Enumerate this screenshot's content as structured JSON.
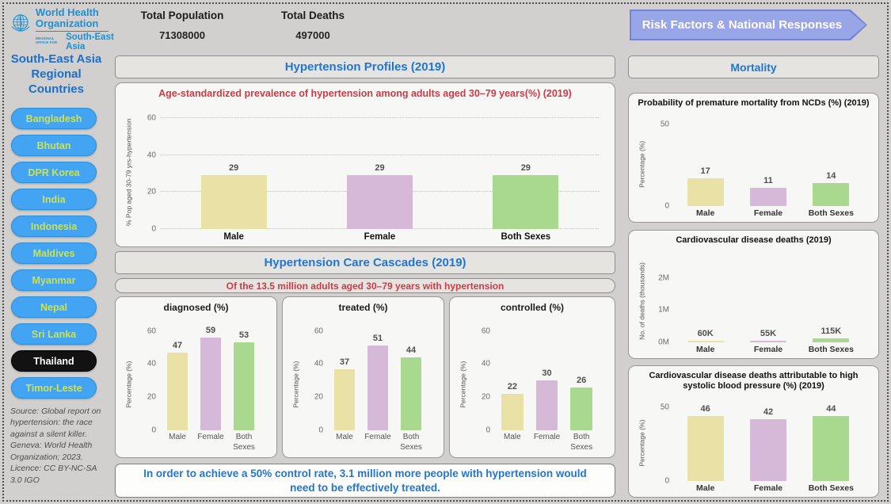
{
  "header": {
    "logo": {
      "org_line1": "World Health",
      "org_line2": "Organization",
      "office_prefix": "REGIONAL OFFICE FOR",
      "region": "South-East Asia"
    },
    "stats": {
      "population_label": "Total Population",
      "population_value": "71308000",
      "deaths_label": "Total Deaths",
      "deaths_value": "497000"
    },
    "risk_button_label": "Risk Factors & National Responses"
  },
  "sidebar": {
    "title": "South-East Asia Regional Countries",
    "countries": [
      {
        "label": "Bangladesh",
        "selected": false
      },
      {
        "label": "Bhutan",
        "selected": false
      },
      {
        "label": "DPR Korea",
        "selected": false
      },
      {
        "label": "India",
        "selected": false
      },
      {
        "label": "Indonesia",
        "selected": false
      },
      {
        "label": "Maldives",
        "selected": false
      },
      {
        "label": "Myanmar",
        "selected": false
      },
      {
        "label": "Nepal",
        "selected": false
      },
      {
        "label": "Sri Lanka",
        "selected": false
      },
      {
        "label": "Thailand",
        "selected": true
      },
      {
        "label": "Timor-Leste",
        "selected": false
      }
    ],
    "source": "Source: Global report on hypertension: the race against a silent killer. Geneva: World Health Organization; 2023. Licence: CC BY-NC-SA 3.0 IGO"
  },
  "main": {
    "profiles_header": "Hypertension Profiles (2019)",
    "cascades_header": "Hypertension Care Cascades (2019)",
    "cascades_subtitle": "Of the 13.5 million adults aged 30–79 years with hypertension",
    "footer_note": "In order to achieve a 50% control rate, 3.1 million more people with hypertension would need to be effectively treated."
  },
  "right_column": {
    "header": "Mortality"
  },
  "colors": {
    "bar_palette": [
      "#e9e1a6",
      "#d6b8d9",
      "#a9d88f"
    ],
    "accent_blue": "#2176d2",
    "title_red": "#cc3b47",
    "country_pill_bg": "#42a4f2",
    "country_pill_text": "#cde24c",
    "selected_pill_bg": "#121212",
    "risk_button_bg": "#98a5e6",
    "who_blue": "#1e8fd5"
  },
  "chart_data": [
    {
      "type": "bar",
      "title": "Age-standardized prevalence of hypertension among adults aged 30–79 years(%) (2019)",
      "categories": [
        "Male",
        "Female",
        "Both Sexes"
      ],
      "values": [
        29,
        29,
        29
      ],
      "ylabel": "% Pop aged 30-79 yrs-hypertension",
      "ylim": [
        0,
        63
      ],
      "ytick_values": [
        0,
        20,
        40,
        60
      ],
      "ytick_labels": [
        "0",
        "20",
        "40",
        "60"
      ],
      "grid": true,
      "bar_width_pct": 45
    },
    {
      "type": "bar",
      "title": "diagnosed (%)",
      "categories": [
        "Male",
        "Female",
        "Both Sexes"
      ],
      "values": [
        47,
        59,
        53
      ],
      "ylabel": "Percentage (%)",
      "ylim": [
        0,
        63
      ],
      "ytick_values": [
        0,
        20,
        40,
        60
      ],
      "ytick_labels": [
        "0",
        "20",
        "40",
        "60"
      ],
      "grid": false,
      "bar_width_pct": 64
    },
    {
      "type": "bar",
      "title": "treated (%)",
      "categories": [
        "Male",
        "Female",
        "Both Sexes"
      ],
      "values": [
        37,
        51,
        44
      ],
      "ylabel": "Percentage (%)",
      "ylim": [
        0,
        63
      ],
      "ytick_values": [
        0,
        20,
        40,
        60
      ],
      "ytick_labels": [
        "0",
        "20",
        "40",
        "60"
      ],
      "grid": false,
      "bar_width_pct": 64
    },
    {
      "type": "bar",
      "title": "controlled (%)",
      "categories": [
        "Male",
        "Female",
        "Both Sexes"
      ],
      "values": [
        22,
        30,
        26
      ],
      "ylabel": "Percentage (%)",
      "ylim": [
        0,
        63
      ],
      "ytick_values": [
        0,
        20,
        40,
        60
      ],
      "ytick_labels": [
        "0",
        "20",
        "40",
        "60"
      ],
      "grid": false,
      "bar_width_pct": 64
    },
    {
      "type": "bar",
      "title": "Probability of premature mortality from NCDs (%) (2019)",
      "categories": [
        "Male",
        "Female",
        "Both Sexes"
      ],
      "values": [
        17,
        11,
        14
      ],
      "ylabel": "Percentage (%)",
      "ylim": [
        0,
        52
      ],
      "ytick_values": [
        0,
        50
      ],
      "ytick_labels": [
        "0",
        "50"
      ],
      "grid": false,
      "bar_width_pct": 58
    },
    {
      "type": "bar",
      "title": "Cardiovascular disease deaths (2019)",
      "categories": [
        "Male",
        "Female",
        "Both Sexes"
      ],
      "values": [
        60000,
        55000,
        115000
      ],
      "labels": [
        "60K",
        "55K",
        "115K"
      ],
      "ylabel": "No. of deaths (thousands)",
      "ylim": [
        0,
        2600000
      ],
      "ytick_values": [
        0,
        1000000,
        2000000
      ],
      "ytick_labels": [
        "0M",
        "1M",
        "2M"
      ],
      "grid": false,
      "bar_width_pct": 58
    },
    {
      "type": "bar",
      "title": "Cardiovascular disease deaths attributable to high systolic blood pressure (%) (2019)",
      "categories": [
        "Male",
        "Female",
        "Both Sexes"
      ],
      "values": [
        46,
        42,
        44
      ],
      "ylabel": "Percentage (%)",
      "ylim": [
        0,
        52
      ],
      "ytick_values": [
        0,
        50
      ],
      "ytick_labels": [
        "0",
        "50"
      ],
      "grid": false,
      "bar_width_pct": 58
    }
  ]
}
